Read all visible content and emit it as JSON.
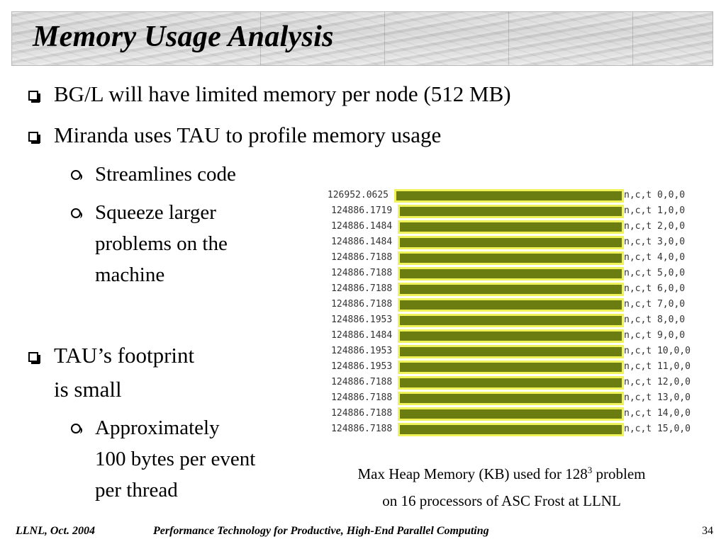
{
  "title": "Memory Usage Analysis",
  "bullets": {
    "b1": "BG/L will have limited memory per node (512 MB)",
    "b2": "Miranda uses TAU to profile memory usage",
    "b2_sub1": "Streamlines code",
    "b2_sub2": [
      "Squeeze larger",
      "problems on the",
      "machine"
    ],
    "b3": [
      "TAU’s footprint",
      "is small"
    ],
    "b3_sub1": [
      "Approximately",
      "100 bytes per event",
      "per thread"
    ]
  },
  "chart_data": {
    "type": "bar",
    "orientation": "horizontal",
    "categories": [
      "n,c,t 0,0,0",
      "n,c,t 1,0,0",
      "n,c,t 2,0,0",
      "n,c,t 3,0,0",
      "n,c,t 4,0,0",
      "n,c,t 5,0,0",
      "n,c,t 6,0,0",
      "n,c,t 7,0,0",
      "n,c,t 8,0,0",
      "n,c,t 9,0,0",
      "n,c,t 10,0,0",
      "n,c,t 11,0,0",
      "n,c,t 12,0,0",
      "n,c,t 13,0,0",
      "n,c,t 14,0,0",
      "n,c,t 15,0,0"
    ],
    "value_labels": [
      "126952.0625",
      "124886.1719",
      "124886.1484",
      "124886.1484",
      "124886.7188",
      "124886.7188",
      "124886.7188",
      "124886.7188",
      "124886.1953",
      "124886.1484",
      "124886.1953",
      "124886.1953",
      "124886.7188",
      "124886.7188",
      "124886.7188",
      "124886.7188"
    ],
    "values": [
      126952.0625,
      124886.1719,
      124886.1484,
      124886.1484,
      124886.7188,
      124886.7188,
      124886.7188,
      124886.7188,
      124886.1953,
      124886.1484,
      124886.1953,
      124886.1953,
      124886.7188,
      124886.7188,
      124886.7188,
      124886.7188
    ],
    "bar_color": "#6b7d10",
    "highlight_color": "#f0f25a"
  },
  "caption": {
    "line1_pre": "Max Heap Memory (KB) used for 128",
    "line1_sup": "3",
    "line1_post": " problem",
    "line2": "on 16 processors of ASC Frost at LLNL"
  },
  "footer": {
    "left": "LLNL, Oct. 2004",
    "center": "Performance Technology for Productive, High-End Parallel Computing",
    "page": "34"
  }
}
